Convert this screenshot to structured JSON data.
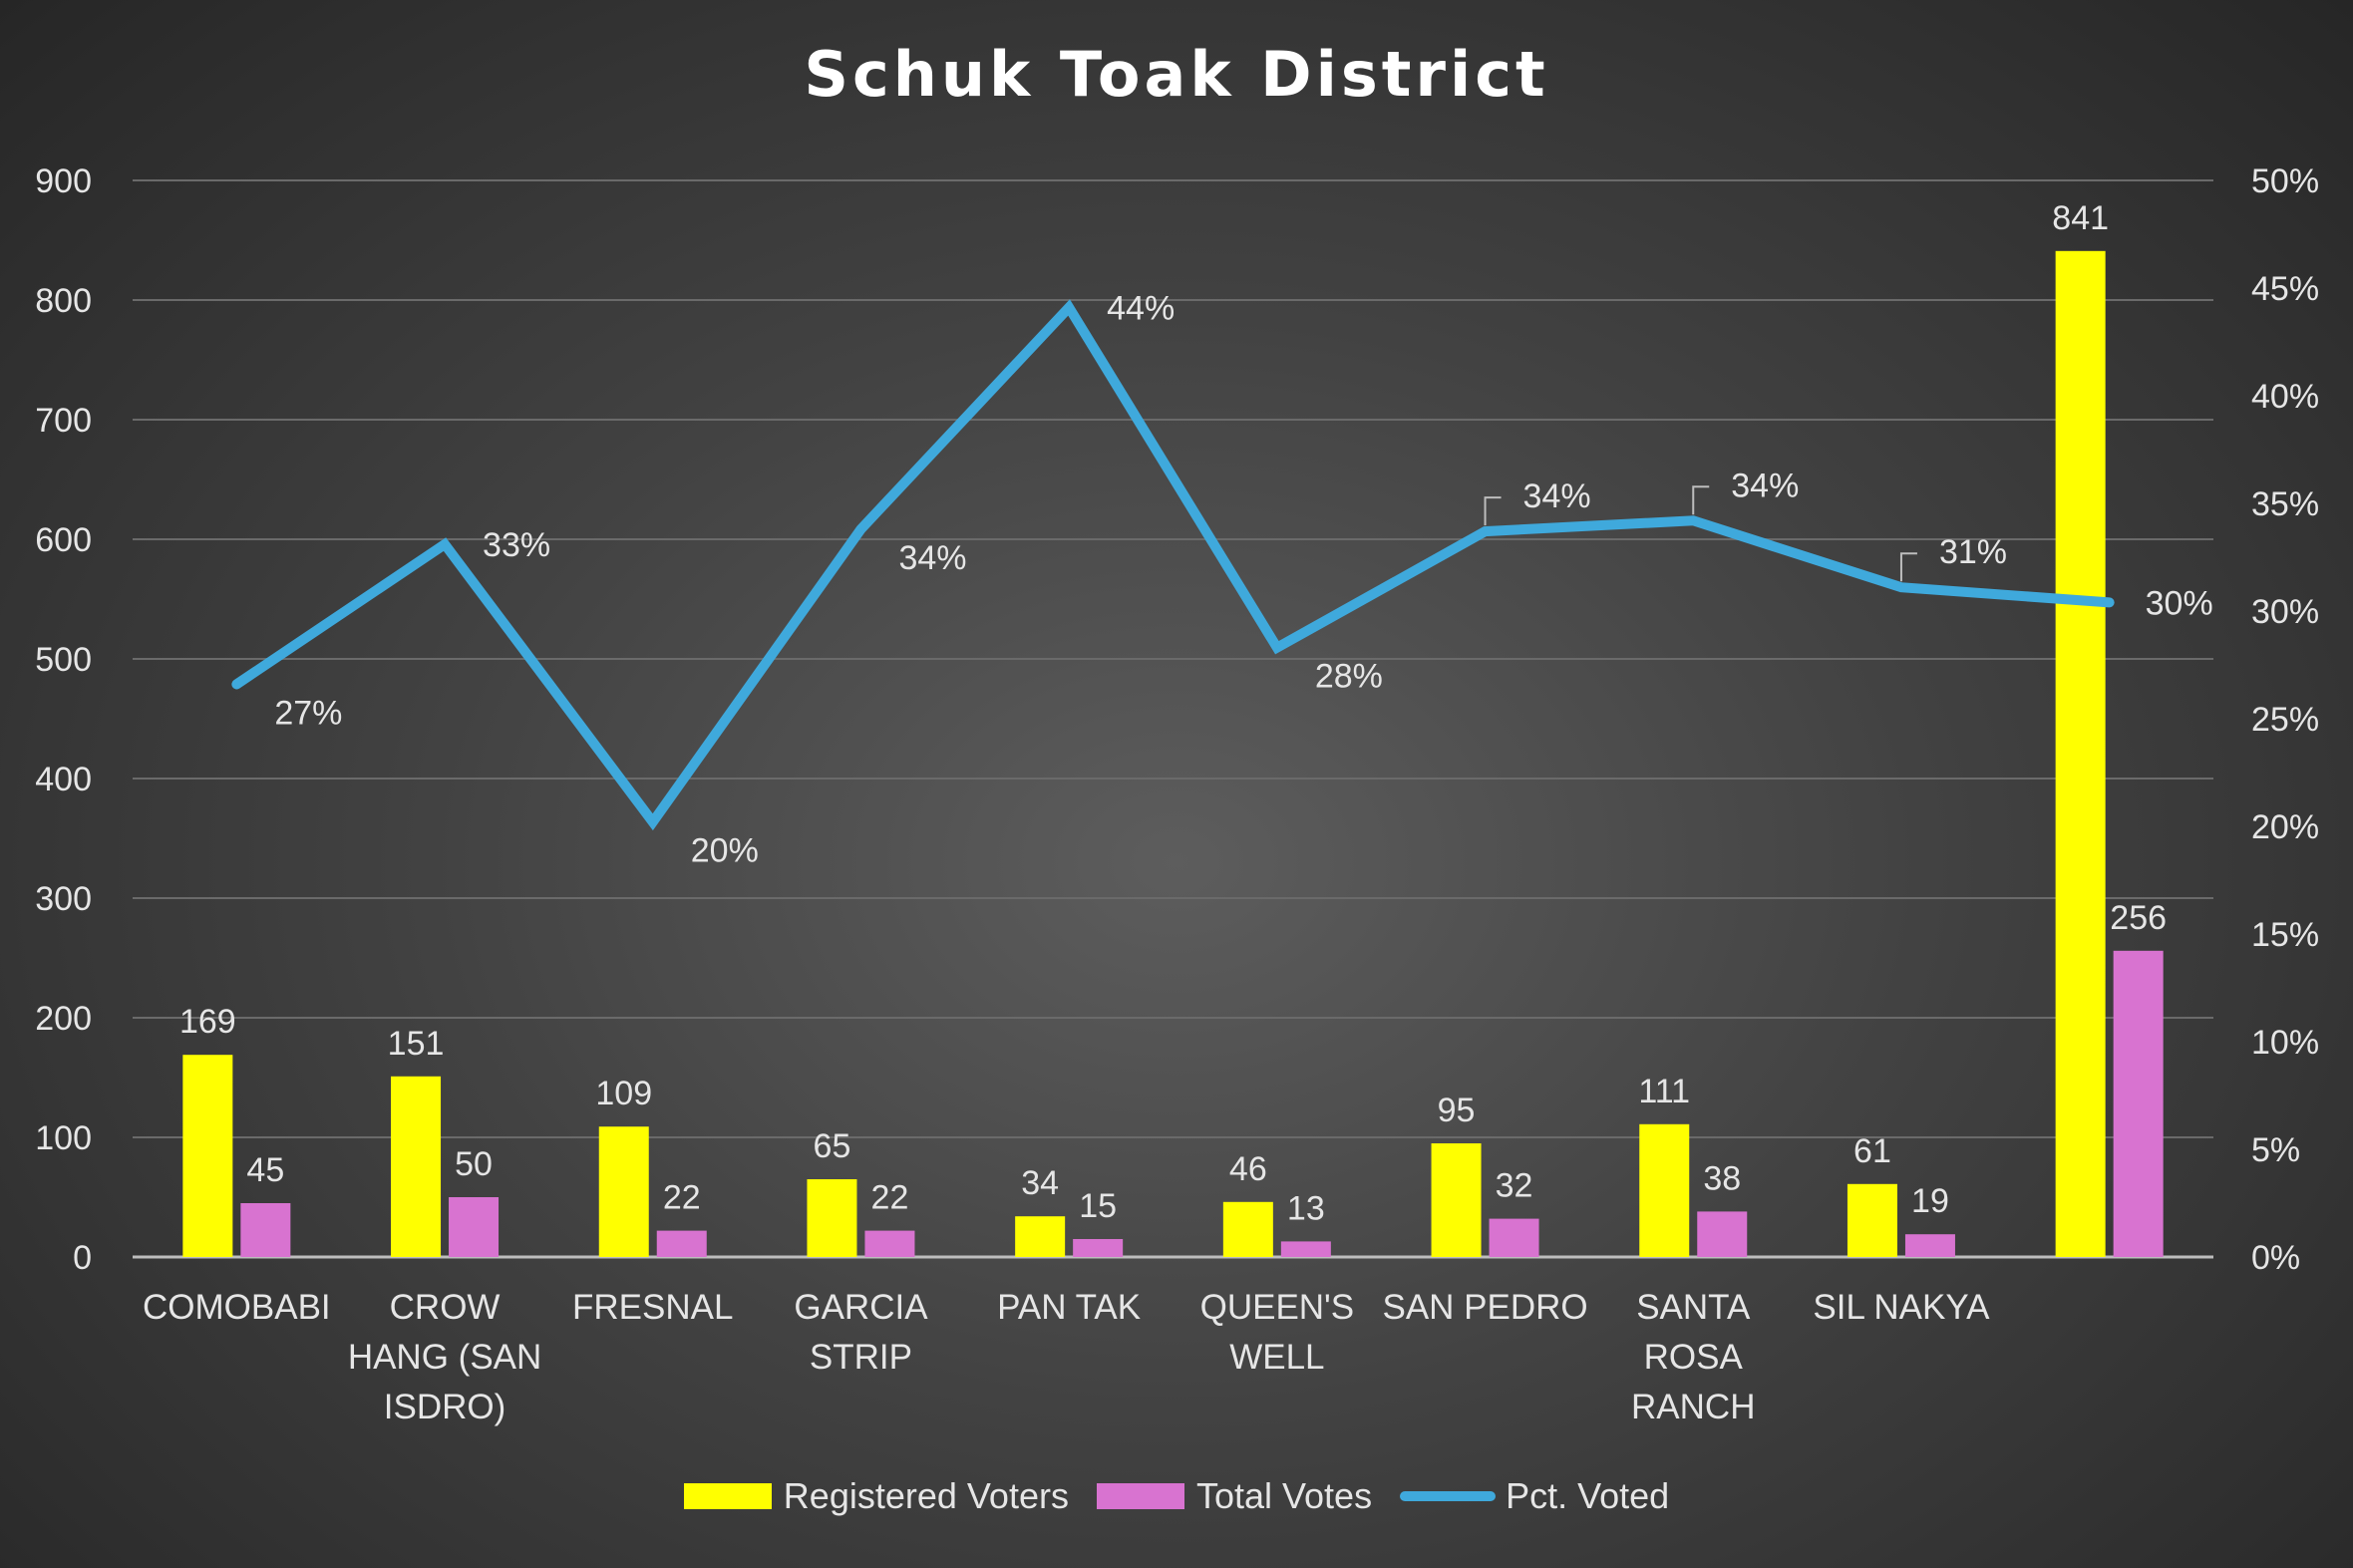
{
  "chart_data": {
    "type": "bar",
    "title": "Schuk Toak District",
    "categories": [
      "COMOBABI",
      "CROW HANG (SAN ISDRO)",
      "FRESNAL",
      "GARCIA STRIP",
      "PAN TAK",
      "QUEEN'S WELL",
      "SAN PEDRO",
      "SANTA ROSA RANCH",
      "SIL NAKYA",
      ""
    ],
    "category_lines": [
      [
        "COMOBABI"
      ],
      [
        "CROW",
        "HANG (SAN",
        "ISDRO)"
      ],
      [
        "FRESNAL"
      ],
      [
        "GARCIA",
        "STRIP"
      ],
      [
        "PAN TAK"
      ],
      [
        "QUEEN'S",
        "WELL"
      ],
      [
        "SAN PEDRO"
      ],
      [
        "SANTA",
        "ROSA",
        "RANCH"
      ],
      [
        "SIL NAKYA"
      ],
      []
    ],
    "series": [
      {
        "name": "Registered Voters",
        "type": "bar",
        "axis": "left",
        "color": "#ffff00",
        "values": [
          169,
          151,
          109,
          65,
          34,
          46,
          95,
          111,
          61,
          841
        ]
      },
      {
        "name": "Total Votes",
        "type": "bar",
        "axis": "left",
        "color": "#d873d0",
        "values": [
          45,
          50,
          22,
          22,
          15,
          13,
          32,
          38,
          19,
          256
        ]
      },
      {
        "name": "Pct. Voted",
        "type": "line",
        "axis": "right",
        "color": "#3fa9dc",
        "values": [
          0.266,
          0.331,
          0.202,
          0.338,
          0.441,
          0.283,
          0.337,
          0.342,
          0.311,
          0.304
        ],
        "labels": [
          "27%",
          "33%",
          "20%",
          "34%",
          "44%",
          "28%",
          "34%",
          "34%",
          "31%",
          "30%"
        ]
      }
    ],
    "y_left": {
      "min": 0,
      "max": 900,
      "step": 100,
      "ticks": [
        "0",
        "100",
        "200",
        "300",
        "400",
        "500",
        "600",
        "700",
        "800",
        "900"
      ]
    },
    "y_right": {
      "min": 0,
      "max": 0.5,
      "ticks": [
        "0%",
        "5%",
        "10%",
        "15%",
        "20%",
        "25%",
        "30%",
        "35%",
        "40%",
        "45%",
        "50%"
      ]
    },
    "grid": true,
    "legend_position": "bottom"
  }
}
